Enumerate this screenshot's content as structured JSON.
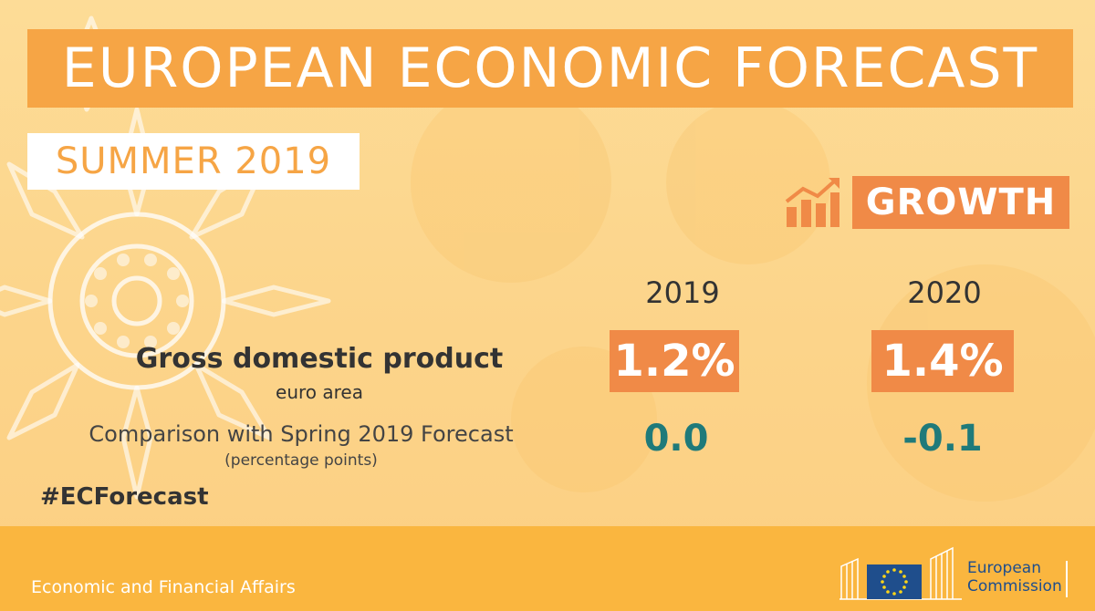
{
  "header": {
    "title": "EUROPEAN ECONOMIC FORECAST",
    "subtitle": "SUMMER 2019"
  },
  "section": {
    "badge": "GROWTH",
    "icon": "growth-chart-icon"
  },
  "table": {
    "years": [
      "2019",
      "2020"
    ],
    "gdp": {
      "label": "Gross domestic product",
      "sublabel": "euro area",
      "values": [
        "1.2%",
        "1.4%"
      ]
    },
    "comparison": {
      "label": "Comparison with Spring 2019 Forecast",
      "sublabel": "(percentage points)",
      "values": [
        "0.0",
        "-0.1"
      ]
    }
  },
  "hashtag": "#ECForecast",
  "footer": {
    "department": "Economic and Financial Affairs",
    "logo_line1": "European",
    "logo_line2": "Commission"
  },
  "colors": {
    "accent_orange": "#f6a545",
    "badge_orange": "#f08a47",
    "teal": "#1f7a7a",
    "footer_yellow": "#fab63f",
    "ec_blue": "#1f4e8c"
  }
}
